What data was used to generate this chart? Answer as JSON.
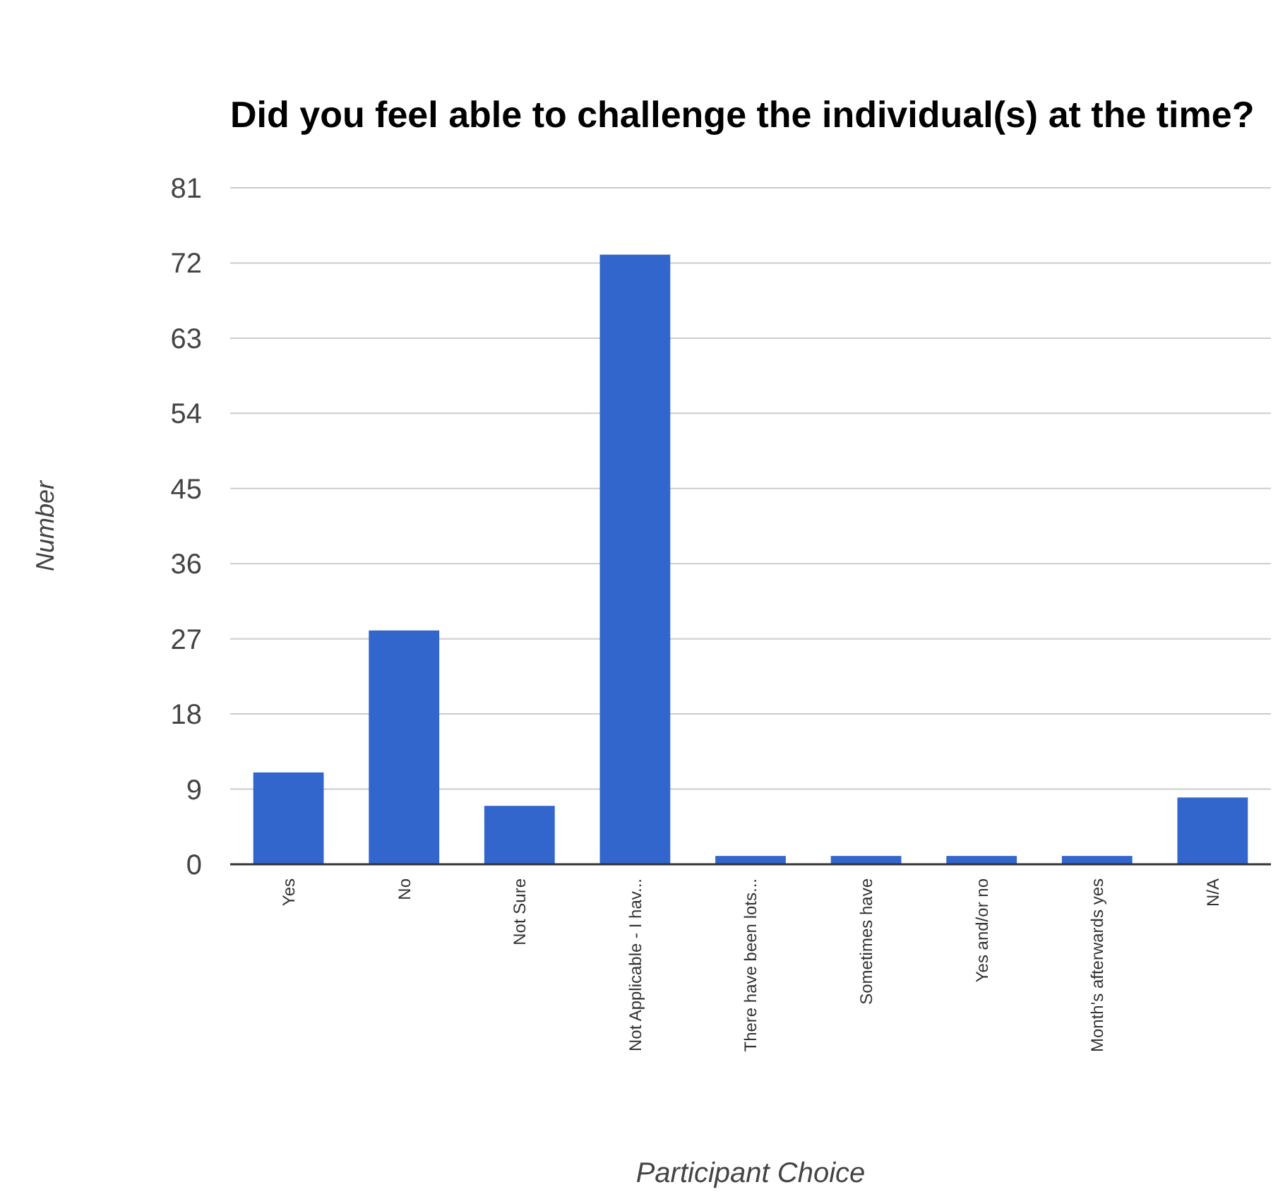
{
  "chart_data": {
    "type": "bar",
    "title": "Did you feel able to challenge the individual(s) at the time?",
    "xlabel": "Participant Choice",
    "ylabel": "Number",
    "categories": [
      "Yes",
      "No",
      "Not Sure",
      "Not Applicable - I hav...",
      "There have been lots...",
      "Sometimes have",
      "Yes and/or no",
      "Month's afterwards yes",
      "N/A"
    ],
    "values": [
      11,
      28,
      7,
      73,
      1,
      1,
      1,
      1,
      8
    ],
    "color": "#3366cc",
    "ylim": [
      0,
      81
    ],
    "yticks": [
      0,
      9,
      18,
      27,
      36,
      45,
      54,
      63,
      72,
      81
    ],
    "grid": "y",
    "legend": false
  }
}
